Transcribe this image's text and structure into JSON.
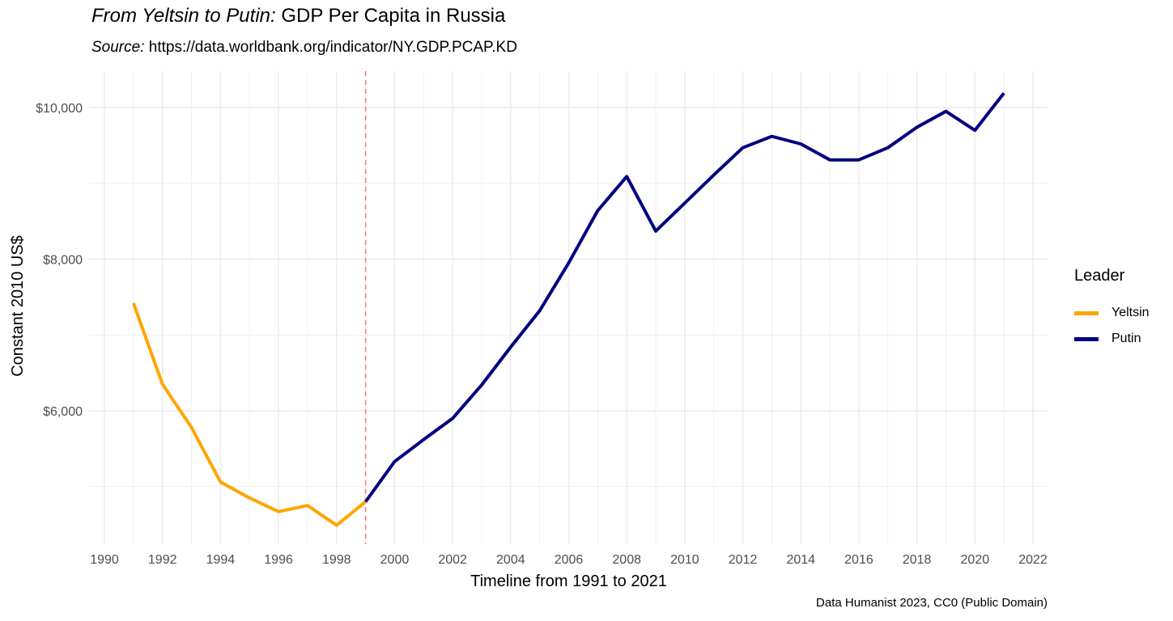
{
  "title": {
    "italic": "From Yeltsin to Putin:",
    "rest": " GDP Per Capita in Russia"
  },
  "subtitle": {
    "italic": "Source:",
    "rest": " https://data.worldbank.org/indicator/NY.GDP.PCAP.KD"
  },
  "caption": "Data Humanist 2023, CC0 (Public Domain)",
  "chart_data": {
    "type": "line",
    "xlabel": "Timeline from 1991 to 2021",
    "ylabel": "Constant 2010 US$",
    "xlim": [
      1990,
      2022
    ],
    "ylim": [
      4400,
      10500
    ],
    "x_ticks": [
      1990,
      1992,
      1994,
      1996,
      1998,
      2000,
      2002,
      2004,
      2006,
      2008,
      2010,
      2012,
      2014,
      2016,
      2018,
      2020,
      2022
    ],
    "x_tick_labels": [
      "1990",
      "1992",
      "1994",
      "1996",
      "1998",
      "2000",
      "2002",
      "2004",
      "2006",
      "2008",
      "2010",
      "2012",
      "2014",
      "2016",
      "2018",
      "2020",
      "2022"
    ],
    "y_ticks": [
      6000,
      8000,
      10000
    ],
    "y_tick_labels": [
      "$6,000",
      "$8,000",
      "$10,000"
    ],
    "y_minor_ticks": [
      5000,
      7000,
      9000
    ],
    "grid": true,
    "vline": {
      "x": 1999,
      "color": "#f8766d",
      "style": "dashed"
    },
    "legend": {
      "title": "Leader",
      "position": "right"
    },
    "series": [
      {
        "name": "Yeltsin",
        "color": "#ffa500",
        "x": [
          1991,
          1992,
          1993,
          1994,
          1995,
          1996,
          1997,
          1998,
          1999
        ],
        "y": [
          7420,
          6350,
          5780,
          5060,
          4850,
          4670,
          4750,
          4490,
          4800
        ]
      },
      {
        "name": "Putin",
        "color": "#000080",
        "x": [
          1999,
          2000,
          2001,
          2002,
          2003,
          2004,
          2005,
          2006,
          2007,
          2008,
          2009,
          2010,
          2011,
          2012,
          2013,
          2014,
          2015,
          2016,
          2017,
          2018,
          2019,
          2020,
          2021
        ],
        "y": [
          4800,
          5330,
          5620,
          5900,
          6340,
          6840,
          7320,
          7950,
          8640,
          9090,
          8370,
          8740,
          9110,
          9470,
          9620,
          9520,
          9310,
          9310,
          9470,
          9740,
          9950,
          9700,
          10190
        ]
      }
    ]
  }
}
